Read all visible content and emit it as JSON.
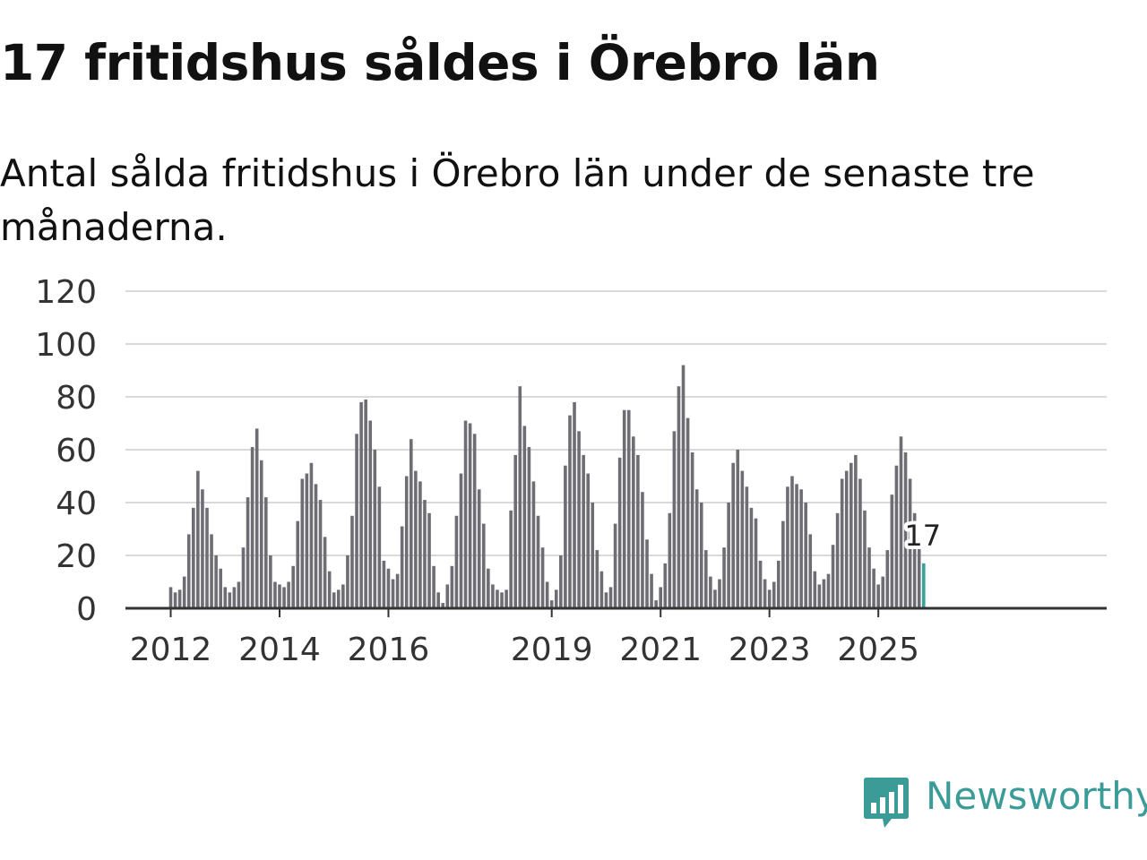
{
  "title": "17 fritidshus såldes i Örebro län",
  "subtitle": "Antal sålda fritidshus i Örebro län under de senaste tre månaderna.",
  "brand": {
    "name": "Newsworthy",
    "icon": "bar-chart-speech-bubble-icon",
    "color": "#3a9b97"
  },
  "chart_data": {
    "type": "bar",
    "title": "17 fritidshus såldes i Örebro län",
    "xlabel": "",
    "ylabel": "",
    "ylim": [
      0,
      120
    ],
    "yticks": [
      "0",
      "20",
      "40",
      "60",
      "80",
      "100",
      "120"
    ],
    "xticks": [
      "2012",
      "2014",
      "2016",
      "2019",
      "2021",
      "2023",
      "2025"
    ],
    "grid": true,
    "bar_color": "#6e6d74",
    "highlight_color": "#36a39d",
    "start": "2012-01",
    "series": [
      {
        "name": "Antal sålda fritidshus",
        "values": [
          8,
          6,
          7,
          12,
          28,
          38,
          52,
          45,
          38,
          28,
          20,
          15,
          8,
          6,
          8,
          10,
          23,
          42,
          61,
          68,
          56,
          42,
          20,
          10,
          9,
          8,
          10,
          16,
          33,
          49,
          51,
          55,
          47,
          41,
          27,
          14,
          6,
          7,
          9,
          20,
          35,
          66,
          78,
          79,
          71,
          60,
          46,
          18,
          15,
          11,
          13,
          31,
          50,
          64,
          52,
          48,
          41,
          36,
          16,
          6,
          2,
          9,
          16,
          35,
          51,
          71,
          70,
          66,
          45,
          32,
          15,
          9,
          7,
          6,
          7,
          37,
          58,
          84,
          69,
          61,
          48,
          35,
          23,
          10,
          3,
          7,
          20,
          54,
          73,
          78,
          67,
          58,
          51,
          40,
          22,
          14,
          6,
          8,
          32,
          57,
          75,
          75,
          65,
          58,
          44,
          26,
          13,
          3,
          8,
          17,
          36,
          67,
          84,
          92,
          72,
          59,
          45,
          40,
          22,
          12,
          7,
          11,
          23,
          40,
          55,
          60,
          52,
          46,
          38,
          34,
          18,
          11,
          7,
          10,
          18,
          33,
          46,
          50,
          47,
          45,
          40,
          28,
          14,
          9,
          11,
          13,
          24,
          36,
          49,
          52,
          55,
          58,
          49,
          37,
          23,
          15,
          9,
          12,
          22,
          43,
          54,
          65,
          59,
          49,
          36,
          24,
          17
        ]
      }
    ],
    "annotation": {
      "label": "17",
      "value": 17,
      "target": "last"
    }
  }
}
